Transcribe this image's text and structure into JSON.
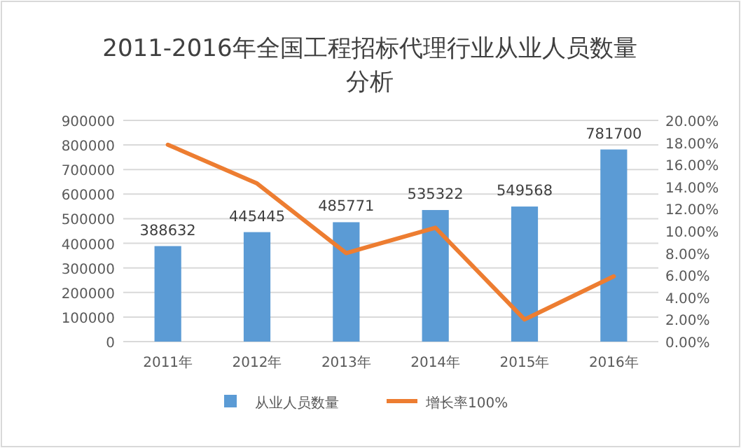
{
  "chart_data": {
    "type": "bar",
    "title": "2011-2016年全国工程招标代理行业从业人员数量分析",
    "categories": [
      "2011年",
      "2012年",
      "2013年",
      "2014年",
      "2015年",
      "2016年"
    ],
    "series": [
      {
        "name": "从业人员数量",
        "color": "#5b9bd5",
        "values": [
          388632,
          445445,
          485771,
          535322,
          549568,
          781700
        ],
        "value_labels": [
          "388632",
          "445445",
          "485771",
          "535322",
          "549568",
          "781700"
        ]
      },
      {
        "name": "增长率100%",
        "type": "line",
        "axis": "y2",
        "color": "#ed7d31",
        "values": [
          17.8,
          14.3,
          8.0,
          10.3,
          2.0,
          5.9
        ]
      }
    ],
    "ylim": [
      0,
      900000
    ],
    "yticks": [
      0,
      100000,
      200000,
      300000,
      400000,
      500000,
      600000,
      700000,
      800000,
      900000
    ],
    "y2lim": [
      0,
      20
    ],
    "y2ticks": [
      {
        "value": 0,
        "label": "0.00%"
      },
      {
        "value": 2,
        "label": "2.00%"
      },
      {
        "value": 4,
        "label": "4.00%"
      },
      {
        "value": 6,
        "label": "6.00%"
      },
      {
        "value": 8,
        "label": "8.00%"
      },
      {
        "value": 10,
        "label": "10.00%"
      },
      {
        "value": 12,
        "label": "12.00%"
      },
      {
        "value": 14,
        "label": "14.00%"
      },
      {
        "value": 16,
        "label": "16.00%"
      },
      {
        "value": 18,
        "label": "18.00%"
      },
      {
        "value": 20,
        "label": "20.00%"
      }
    ],
    "grid": "y",
    "legend": "bottom",
    "marker": "none"
  }
}
